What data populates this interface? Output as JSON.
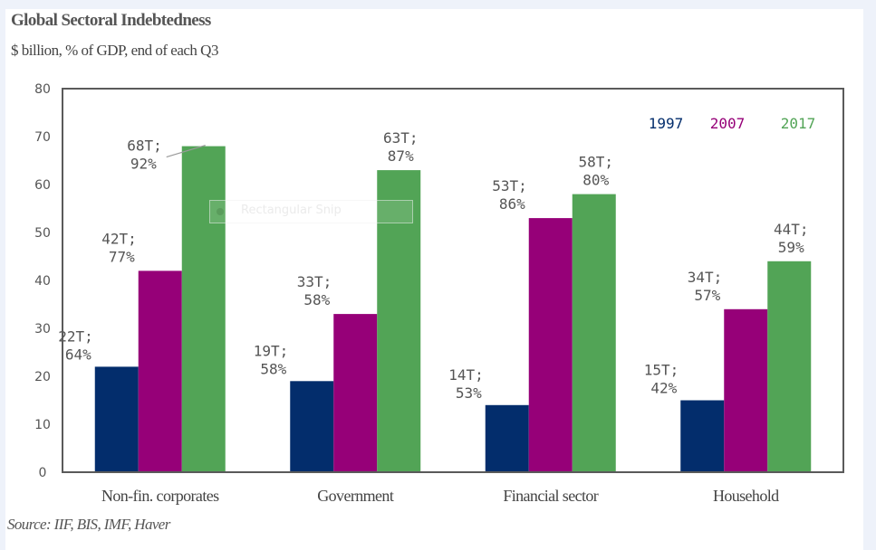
{
  "colors": {
    "1997": "#032d6c",
    "2007": "#960078",
    "2017": "#52a456",
    "axis": "#5a5a5a",
    "text": "#555555"
  },
  "overlay": {
    "label": "Rectangular Snip"
  },
  "chart_data": {
    "type": "bar",
    "title": "Global Sectoral Indebtedness",
    "subtitle": "$ billion, % of GDP, end of each Q3",
    "source": "Source: IIF, BIS, IMF, Haver",
    "xlabel": "",
    "ylabel": "",
    "ylim": [
      0,
      80
    ],
    "yticks": [
      0,
      10,
      20,
      30,
      40,
      50,
      60,
      70,
      80
    ],
    "yticks_labels": [
      "0",
      "10",
      "20",
      "30",
      "40",
      "50",
      "60",
      "70",
      "80"
    ],
    "grid": false,
    "legend_position": "top-right",
    "categories": [
      "Non-fin. corporates",
      "Government",
      "Financial sector",
      "Household"
    ],
    "series": [
      {
        "name": "1997",
        "values": [
          22,
          19,
          14,
          15
        ],
        "labels_line1": [
          "22T;",
          "19T;",
          "14T;",
          "15T;"
        ],
        "labels_line2": [
          "64%",
          "58%",
          "53%",
          "42%"
        ]
      },
      {
        "name": "2007",
        "values": [
          42,
          33,
          53,
          34
        ],
        "labels_line1": [
          "42T;",
          "33T;",
          "53T;",
          "34T;"
        ],
        "labels_line2": [
          "77%",
          "58%",
          "86%",
          "57%"
        ]
      },
      {
        "name": "2017",
        "values": [
          68,
          63,
          58,
          44
        ],
        "labels_line1": [
          "68T;",
          "63T;",
          "58T;",
          "44T;"
        ],
        "labels_line2": [
          "92%",
          "87%",
          "80%",
          "59%"
        ]
      }
    ]
  }
}
